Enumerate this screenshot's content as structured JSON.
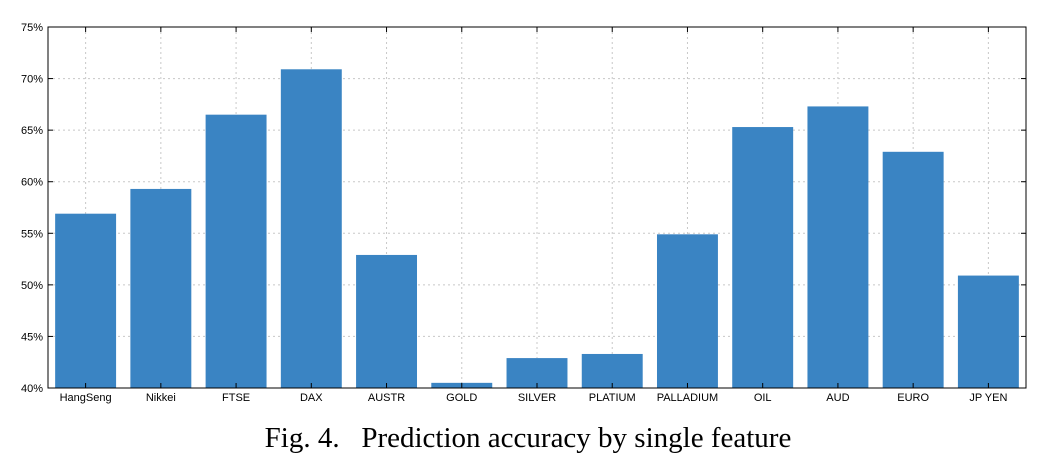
{
  "caption": "Fig. 4.   Prediction accuracy by single feature",
  "colors": {
    "bar": "#3a84c3",
    "grid": "#c8c8c8",
    "axis": "#000000",
    "background": "#ffffff"
  },
  "chart_data": {
    "type": "bar",
    "title": "",
    "xlabel": "",
    "ylabel": "",
    "categories": [
      "HangSeng",
      "Nikkei",
      "FTSE",
      "DAX",
      "AUSTR",
      "GOLD",
      "SILVER",
      "PLATIUM",
      "PALLADIUM",
      "OIL",
      "AUD",
      "EURO",
      "JP YEN"
    ],
    "values": [
      56.9,
      59.3,
      66.5,
      70.9,
      52.9,
      40.5,
      42.9,
      43.3,
      54.9,
      65.3,
      67.3,
      62.9,
      50.9
    ],
    "ylim": [
      40,
      75
    ],
    "yticks": [
      40,
      45,
      50,
      55,
      60,
      65,
      70,
      75
    ],
    "ytick_labels": [
      "40%",
      "45%",
      "50%",
      "55%",
      "60%",
      "65%",
      "70%",
      "75%"
    ],
    "grid": true,
    "legend": false
  }
}
